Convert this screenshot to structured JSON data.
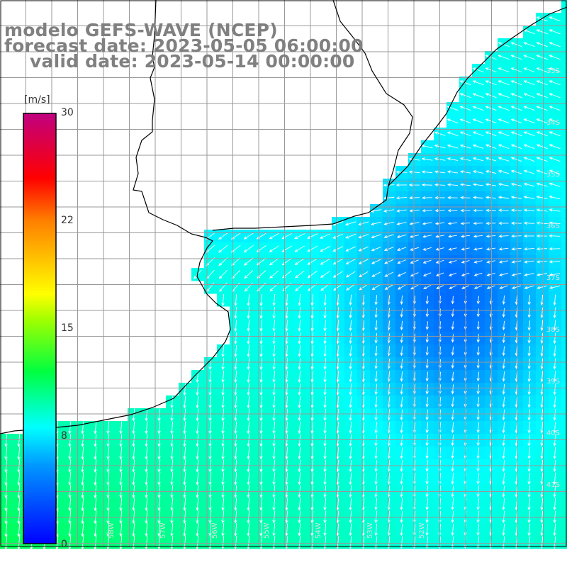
{
  "title": {
    "line1": "modelo GEFS-WAVE (NCEP)",
    "line2": "forecast date: 2023-05-05 06:00:00",
    "line3": "valid date: 2023-05-14 00:00:00"
  },
  "colorbar": {
    "unit": "[m/s]",
    "min": 0,
    "max": 30,
    "ticks": [
      "30",
      "22",
      "15",
      "8",
      "0"
    ],
    "tick_values": [
      30,
      22,
      15,
      8,
      0
    ],
    "colors": [
      "#0000ff",
      "#0096ff",
      "#00ffff",
      "#00ff00",
      "#ffff00",
      "#ff8000",
      "#ff0000",
      "#c00080"
    ]
  },
  "map": {
    "variable": "wind speed and direction",
    "latitude_labels": [
      "33S",
      "34S",
      "35S",
      "36S",
      "37S",
      "38S",
      "39S",
      "40S",
      "41S"
    ],
    "longitude_labels": [
      "58W",
      "57W",
      "56W",
      "55W",
      "54W",
      "53W",
      "52W"
    ],
    "colors": {
      "land": "#ffffff",
      "coast": "#000000",
      "grid": "#999999",
      "arrow": "#ffffff"
    }
  }
}
